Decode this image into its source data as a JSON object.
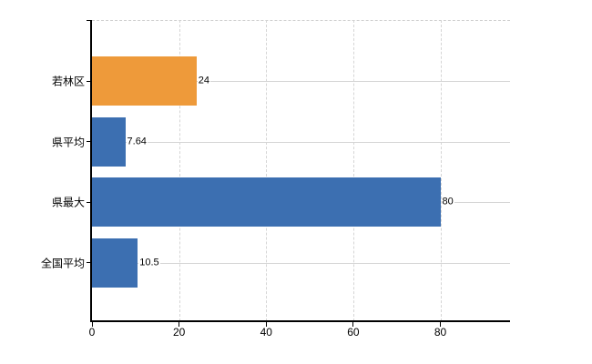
{
  "chart_data": {
    "type": "bar",
    "orientation": "horizontal",
    "categories": [
      "若林区",
      "県平均",
      "県最大",
      "全国平均"
    ],
    "values": [
      24,
      7.64,
      80,
      10.5
    ],
    "value_labels": [
      "24",
      "7.64",
      "80",
      "10.5"
    ],
    "bar_colors": [
      "#EE9A3A",
      "#3C6FB1",
      "#3C6FB1",
      "#3C6FB1"
    ],
    "x_ticks": [
      0,
      20,
      40,
      60,
      80
    ],
    "x_tick_labels": [
      "0",
      "20",
      "40",
      "60",
      "80"
    ],
    "xlim": [
      0,
      96
    ],
    "grid": true,
    "legend_position": "none",
    "colors": {
      "bar_orange": "#EE9A3A",
      "bar_blue": "#3C6FB1",
      "grid": "#d5d5d5",
      "axis": "#000000",
      "text": "#000000",
      "background": "#ffffff"
    }
  }
}
